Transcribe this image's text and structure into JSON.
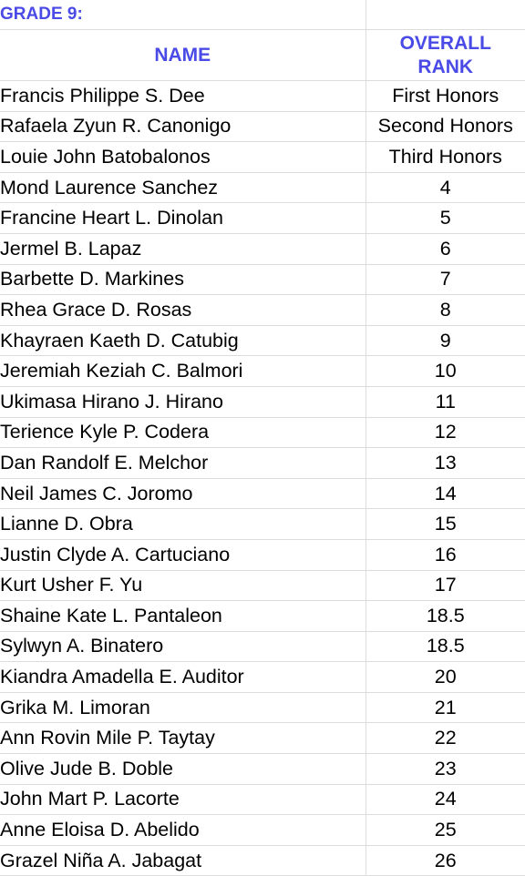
{
  "sheet": {
    "title": "GRADE 9:",
    "header": {
      "name": "NAME",
      "rank_line1": "OVERALL",
      "rank_line2": "RANK"
    },
    "accent_color": "#4a4ae6",
    "rows": [
      {
        "name": "Francis Philippe S. Dee",
        "rank": "First Honors"
      },
      {
        "name": "Rafaela Zyun R. Canonigo",
        "rank": "Second Honors"
      },
      {
        "name": "Louie John Batobalonos",
        "rank": "Third Honors"
      },
      {
        "name": "Mond Laurence Sanchez",
        "rank": "4"
      },
      {
        "name": "Francine Heart L. Dinolan",
        "rank": "5"
      },
      {
        "name": "Jermel B. Lapaz",
        "rank": "6"
      },
      {
        "name": "Barbette D. Markines",
        "rank": "7"
      },
      {
        "name": "Rhea Grace D. Rosas",
        "rank": "8"
      },
      {
        "name": "Khayraen Kaeth D. Catubig",
        "rank": "9"
      },
      {
        "name": "Jeremiah Keziah C. Balmori",
        "rank": "10"
      },
      {
        "name": "Ukimasa Hirano J. Hirano",
        "rank": "11"
      },
      {
        "name": "Terience Kyle P. Codera",
        "rank": "12"
      },
      {
        "name": "Dan Randolf E. Melchor",
        "rank": "13"
      },
      {
        "name": "Neil James C. Joromo",
        "rank": "14"
      },
      {
        "name": "Lianne D. Obra",
        "rank": "15"
      },
      {
        "name": "Justin Clyde A. Cartuciano",
        "rank": "16"
      },
      {
        "name": "Kurt Usher F. Yu",
        "rank": "17"
      },
      {
        "name": "Shaine Kate L. Pantaleon",
        "rank": "18.5"
      },
      {
        "name": "Sylwyn A. Binatero",
        "rank": "18.5"
      },
      {
        "name": "Kiandra Amadella E. Auditor",
        "rank": "20"
      },
      {
        "name": "Grika M. Limoran",
        "rank": "21"
      },
      {
        "name": "Ann Rovin Mile P. Taytay",
        "rank": "22"
      },
      {
        "name": "Olive Jude B. Doble",
        "rank": "23"
      },
      {
        "name": "John Mart P. Lacorte",
        "rank": "24"
      },
      {
        "name": "Anne Eloisa D. Abelido",
        "rank": "25"
      },
      {
        "name": "Grazel Niña A. Jabagat",
        "rank": "26"
      }
    ]
  }
}
